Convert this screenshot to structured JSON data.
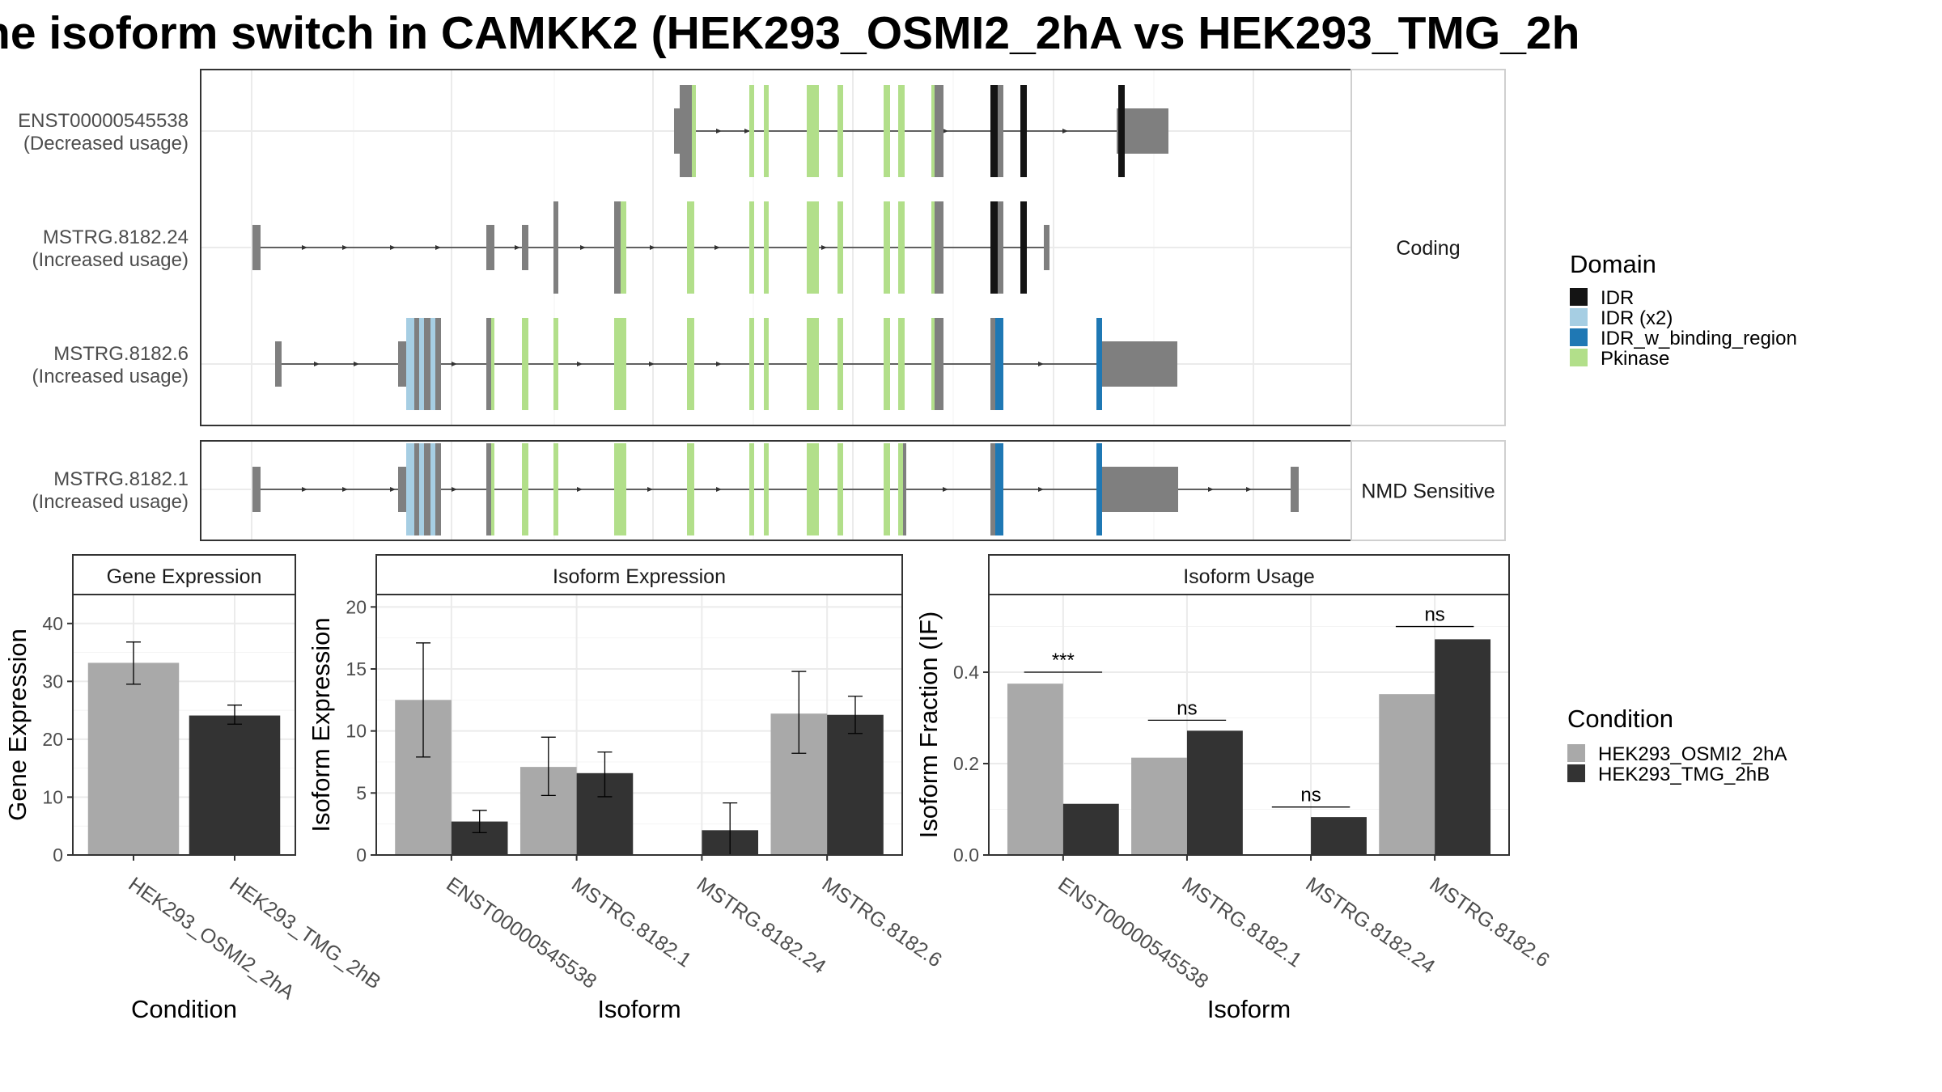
{
  "title": "ne isoform switch in CAMKK2 (HEK293_OSMI2_2hA vs HEK293_TMG_2h",
  "colors": {
    "utr": "#7f7f7f",
    "intron": "#333333",
    "idr": "#141414",
    "idr_x2": "#a6cee3",
    "idr_w_binding_region": "#1f78b4",
    "pkinase": "#b2df8a",
    "cond_a": "#a9a9a9",
    "cond_b": "#333333"
  },
  "isoform_structure": {
    "facets": [
      {
        "label": "Coding",
        "transcripts": [
          {
            "id": "ENST00000545538",
            "usage": "(Decreased usage)"
          },
          {
            "id": "MSTRG.8182.24",
            "usage": "(Increased usage)"
          },
          {
            "id": "MSTRG.8182.6",
            "usage": "(Increased usage)"
          }
        ]
      },
      {
        "label": "NMD Sensitive",
        "transcripts": [
          {
            "id": "MSTRG.8182.1",
            "usage": "(Increased usage)"
          }
        ]
      }
    ],
    "domain_legend": {
      "title": "Domain",
      "entries": [
        {
          "label": "IDR",
          "color": "#141414"
        },
        {
          "label": "IDR (x2)",
          "color": "#a6cee3"
        },
        {
          "label": "IDR_w_binding_region",
          "color": "#1f78b4"
        },
        {
          "label": "Pkinase",
          "color": "#b2df8a"
        }
      ]
    }
  },
  "condition_legend": {
    "title": "Condition",
    "entries": [
      {
        "label": "HEK293_OSMI2_2hA",
        "color": "#a9a9a9"
      },
      {
        "label": "HEK293_TMG_2hB",
        "color": "#333333"
      }
    ]
  },
  "chart_data": [
    {
      "type": "bar",
      "title": "Gene Expression",
      "xlabel": "Condition",
      "ylabel": "Gene Expression",
      "categories": [
        "HEK293_OSMI2_2hA",
        "HEK293_TMG_2hB"
      ],
      "values": [
        33.2,
        24.1
      ],
      "error": [
        [
          29.5,
          36.8
        ],
        [
          22.6,
          25.9
        ]
      ],
      "ylim": [
        0,
        45
      ],
      "yticks": [
        0,
        10,
        20,
        30,
        40
      ]
    },
    {
      "type": "bar",
      "title": "Isoform Expression",
      "xlabel": "Isoform",
      "ylabel": "Isoform Expression",
      "categories": [
        "ENST00000545538",
        "MSTRG.8182.1",
        "MSTRG.8182.24",
        "MSTRG.8182.6"
      ],
      "series": [
        {
          "name": "HEK293_OSMI2_2hA",
          "values": [
            12.5,
            7.1,
            0.0,
            11.4
          ],
          "error": [
            [
              7.9,
              17.1
            ],
            [
              4.8,
              9.5
            ],
            [
              0.0,
              0.0
            ],
            [
              8.2,
              14.8
            ]
          ]
        },
        {
          "name": "HEK293_TMG_2hB",
          "values": [
            2.7,
            6.6,
            2.0,
            11.3
          ],
          "error": [
            [
              1.8,
              3.6
            ],
            [
              4.7,
              8.3
            ],
            [
              0.0,
              4.2
            ],
            [
              9.8,
              12.8
            ]
          ]
        }
      ],
      "ylim": [
        0,
        21
      ],
      "yticks": [
        0,
        5,
        10,
        15,
        20
      ]
    },
    {
      "type": "bar",
      "title": "Isoform Usage",
      "xlabel": "Isoform",
      "ylabel": "Isoform Fraction (IF)",
      "categories": [
        "ENST00000545538",
        "MSTRG.8182.1",
        "MSTRG.8182.24",
        "MSTRG.8182.6"
      ],
      "series": [
        {
          "name": "HEK293_OSMI2_2hA",
          "values": [
            0.375,
            0.213,
            0.0,
            0.352
          ]
        },
        {
          "name": "HEK293_TMG_2hB",
          "values": [
            0.112,
            0.272,
            0.083,
            0.472
          ]
        }
      ],
      "significance": [
        {
          "label": "***",
          "y": 0.4
        },
        {
          "label": "ns",
          "y": 0.295
        },
        {
          "label": "ns",
          "y": 0.105
        },
        {
          "label": "ns",
          "y": 0.5
        }
      ],
      "ylim": [
        0,
        0.57
      ],
      "yticks": [
        0.0,
        0.2,
        0.4
      ],
      "ytick_labels": [
        "0.0",
        "0.2",
        "0.4"
      ]
    }
  ]
}
